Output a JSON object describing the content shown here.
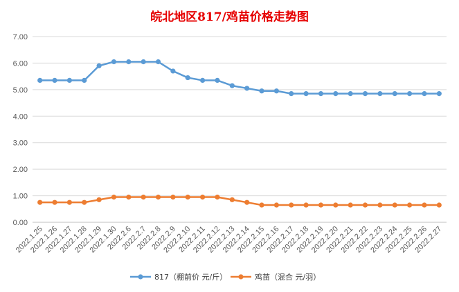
{
  "chart_data": {
    "type": "line",
    "title": "皖北地区817/鸡苗价格走势图",
    "categories": [
      "2022.1.25",
      "2022.1.26",
      "2022.1.27",
      "2022.1.28",
      "2022.1.29",
      "2022.1.30",
      "2022.2.6",
      "2022.2.7",
      "2022.2.8",
      "2022.2.9",
      "2022.2.10",
      "2022.2.11",
      "2022.2.12",
      "2022.2.13",
      "2022.2.14",
      "2022.2.15",
      "2022.2.16",
      "2022.2.17",
      "2022.2.18",
      "2022.2.19",
      "2022.2.20",
      "2022.2.21",
      "2022.2.22",
      "2022.2.23",
      "2022.2.24",
      "2022.2.25",
      "2022.2.26",
      "2022.2.27"
    ],
    "series": [
      {
        "name": "817（棚前价 元/斤）",
        "color": "#5b9bd5",
        "values": [
          5.35,
          5.35,
          5.35,
          5.35,
          5.9,
          6.05,
          6.05,
          6.05,
          6.05,
          5.7,
          5.45,
          5.35,
          5.35,
          5.15,
          5.05,
          4.95,
          4.95,
          4.85,
          4.85,
          4.85,
          4.85,
          4.85,
          4.85,
          4.85,
          4.85,
          4.85,
          4.85,
          4.85
        ]
      },
      {
        "name": "鸡苗（混合 元/羽）",
        "color": "#ed7d31",
        "values": [
          0.75,
          0.75,
          0.75,
          0.75,
          0.85,
          0.95,
          0.95,
          0.95,
          0.95,
          0.95,
          0.95,
          0.95,
          0.95,
          0.85,
          0.75,
          0.65,
          0.65,
          0.65,
          0.65,
          0.65,
          0.65,
          0.65,
          0.65,
          0.65,
          0.65,
          0.65,
          0.65,
          0.65
        ]
      }
    ],
    "ylim": [
      0,
      7
    ],
    "yticks": [
      "0.00",
      "1.00",
      "2.00",
      "3.00",
      "4.00",
      "5.00",
      "6.00",
      "7.00"
    ],
    "grid": true,
    "legend": "bottom"
  }
}
